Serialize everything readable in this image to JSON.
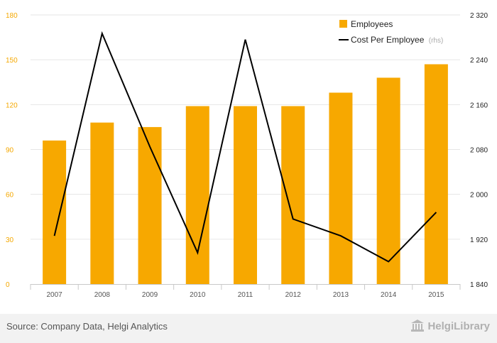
{
  "chart_data": {
    "type": "bar+line",
    "categories": [
      "2007",
      "2008",
      "2009",
      "2010",
      "2011",
      "2012",
      "2013",
      "2014",
      "2015"
    ],
    "series": [
      {
        "name": "Employees",
        "type": "bar",
        "axis": "left",
        "color": "#f7a800",
        "values": [
          96,
          108,
          105,
          119,
          119,
          119,
          128,
          138,
          147
        ]
      },
      {
        "name": "Cost Per Employee",
        "name_suffix": "(rhs)",
        "type": "line",
        "axis": "right",
        "color": "#000000",
        "values": [
          1926,
          2287,
          2085,
          1896,
          2276,
          1956,
          1926,
          1880,
          1968
        ]
      }
    ],
    "y_left": {
      "ylim": [
        0,
        180
      ],
      "ticks": [
        "0",
        "30",
        "60",
        "90",
        "120",
        "150",
        "180"
      ],
      "color": "#f5a800"
    },
    "y_right": {
      "ylim": [
        1840,
        2320
      ],
      "ticks": [
        "1 840",
        "1 920",
        "2 000",
        "2 080",
        "2 160",
        "2 240",
        "2 320"
      ]
    },
    "grid": true,
    "legend_position": "top-right"
  },
  "footer": {
    "source": "Source: Company Data, Helgi Analytics",
    "logo_text": "HelgiLibrary"
  }
}
